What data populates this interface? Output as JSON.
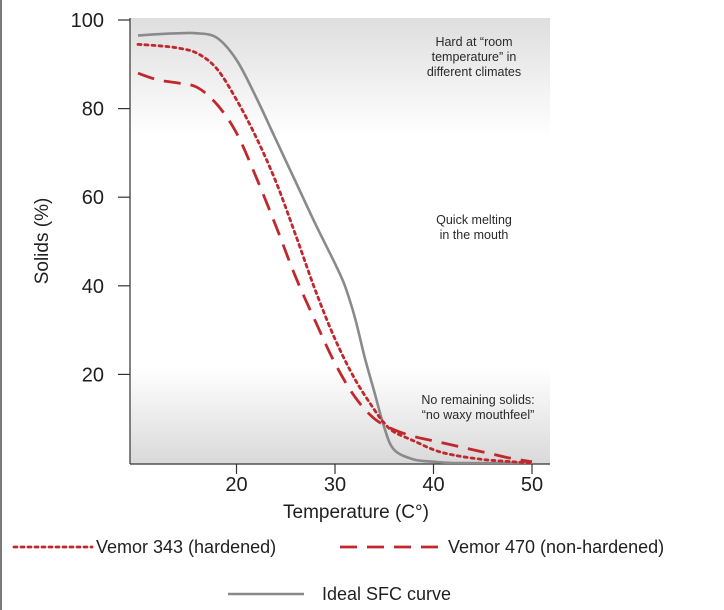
{
  "chart_data": {
    "type": "line",
    "xlabel": "Temperature (C°)",
    "ylabel": "Solids (%)",
    "xlim": [
      10,
      55
    ],
    "ylim": [
      0,
      100
    ],
    "x_ticks": [
      20,
      30,
      40,
      50
    ],
    "y_ticks": [
      20,
      40,
      60,
      80,
      100
    ],
    "grid": false,
    "legend_position": "bottom",
    "series": [
      {
        "name": "Vemor 343 (hardened)",
        "style": "dotted",
        "color": "#c0282d",
        "x": [
          10,
          12,
          14,
          16,
          18,
          20,
          22,
          24,
          26,
          28,
          30,
          32,
          34,
          35,
          36,
          38,
          40,
          42,
          45,
          48,
          50
        ],
        "y": [
          94.5,
          94.2,
          93.7,
          92.5,
          89,
          82,
          73.5,
          63.5,
          51.5,
          39,
          28,
          19,
          12,
          9,
          7,
          5,
          3,
          1.8,
          0.8,
          0.3,
          0
        ]
      },
      {
        "name": "Vemor 470 (non-hardened)",
        "style": "dashed",
        "color": "#c0282d",
        "x": [
          10,
          12,
          14,
          16,
          18,
          20,
          22,
          24,
          26,
          28,
          30,
          32,
          34,
          36,
          38,
          40,
          42,
          44,
          46,
          48,
          50
        ],
        "y": [
          88,
          86.5,
          85.8,
          84.8,
          81,
          74.5,
          64.5,
          53.5,
          42,
          32,
          22.5,
          15,
          10,
          7.5,
          6,
          5,
          4,
          3,
          2,
          1,
          0.3
        ]
      },
      {
        "name": "Ideal SFC curve",
        "style": "solid",
        "color": "#8a8a8a",
        "x": [
          10,
          12,
          14,
          16,
          18,
          20,
          22,
          24,
          26,
          28,
          30,
          31,
          32,
          33,
          34,
          35,
          36,
          38,
          40,
          42,
          46,
          50
        ],
        "y": [
          96.5,
          96.8,
          97,
          97,
          96,
          91,
          82.5,
          73,
          63.5,
          54,
          45,
          40,
          33,
          24,
          16,
          8,
          3,
          0.8,
          0.3,
          0,
          0,
          0
        ]
      }
    ],
    "annotations": [
      {
        "lines": [
          "Hard at “room",
          "temperature” in",
          "different climates"
        ]
      },
      {
        "lines": [
          "Quick melting",
          "in the mouth"
        ]
      },
      {
        "lines": [
          "No remaining solids:",
          "“no waxy mouthfeel”"
        ]
      }
    ]
  }
}
